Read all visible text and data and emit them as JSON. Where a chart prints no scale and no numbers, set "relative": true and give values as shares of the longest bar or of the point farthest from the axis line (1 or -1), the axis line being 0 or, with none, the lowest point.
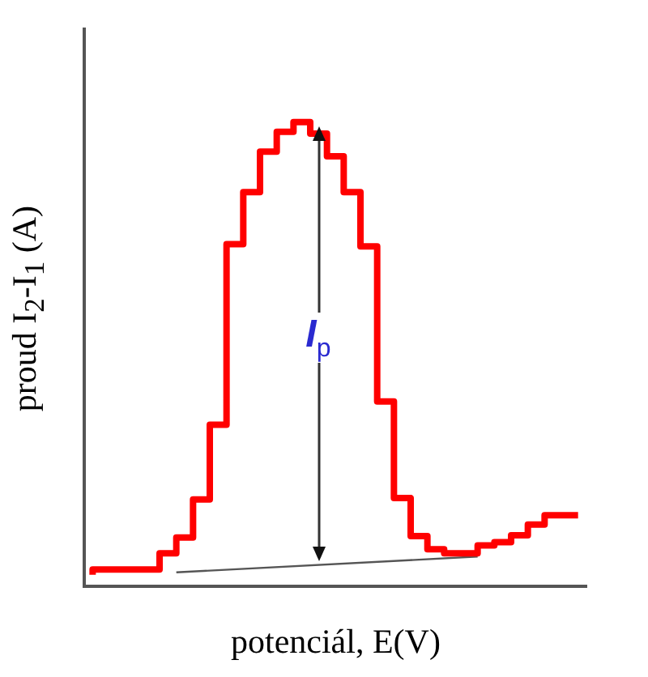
{
  "chart_data": {
    "type": "step",
    "relative": true,
    "xlabel": "potenciál, E(V)",
    "ylabel": "proud I$_{2}$-I$_{1}$ (A)",
    "categories": [
      null,
      null,
      null,
      null,
      null,
      null,
      null,
      null,
      null,
      null,
      null,
      null,
      null,
      null,
      null,
      null,
      null,
      null,
      null,
      null,
      null,
      null,
      null,
      null,
      null,
      null,
      null,
      null,
      null,
      null
    ],
    "series": [
      {
        "color": "#ff0000",
        "values": [
          0.025,
          0.036,
          0.036,
          0.036,
          0.036,
          0.071,
          0.105,
          0.187,
          0.348,
          0.737,
          0.849,
          0.936,
          0.979,
          1,
          0.975,
          0.926,
          0.849,
          0.732,
          0.398,
          0.19,
          0.108,
          0.08,
          0.071,
          0.071,
          0.088,
          0.095,
          0.11,
          0.133,
          0.153,
          0.153
        ]
      },
      {
        "type": "line",
        "color": "#555555",
        "values": [
          null,
          null,
          null,
          null,
          null,
          0.03,
          null,
          null,
          null,
          null,
          null,
          null,
          null,
          null,
          null,
          null,
          null,
          null,
          null,
          null,
          null,
          null,
          null,
          0.064,
          null,
          null,
          null,
          null,
          null,
          null
        ]
      }
    ],
    "annotations": [
      "I$_{p}$"
    ],
    "legend": false,
    "grid": false
  }
}
